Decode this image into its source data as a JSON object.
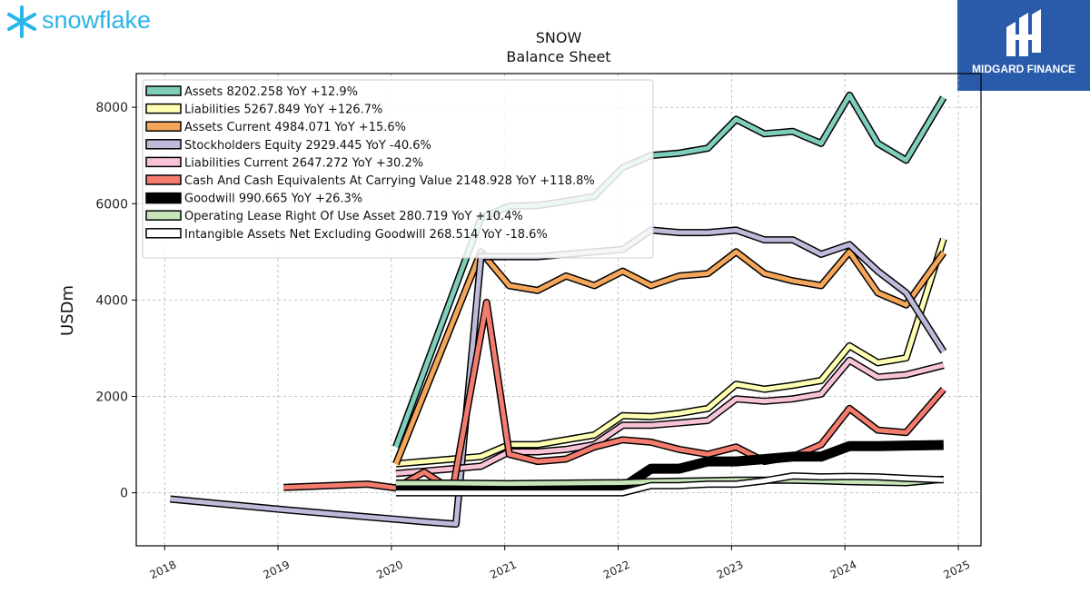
{
  "brand": {
    "left_logo_text": "snowflake",
    "left_logo_color": "#29b5e8",
    "right_logo_text": "MIDGARD FINANCE",
    "right_logo_bg": "#2a5bab"
  },
  "chart_data": {
    "type": "line",
    "title": "SNOW",
    "subtitle": "Balance  Sheet",
    "ylabel": "USDm",
    "ylim": [
      -1100,
      8700
    ],
    "xlim": [
      2017.75,
      2025.2
    ],
    "yticks": [
      0,
      2000,
      4000,
      6000,
      8000
    ],
    "xticks": [
      2018,
      2019,
      2020,
      2021,
      2022,
      2023,
      2024,
      2025
    ],
    "grid": true,
    "legend_position": "top-left",
    "series": [
      {
        "name": "Assets  8202.258 YoY +12.9%",
        "color": "#7fcdbb",
        "width": 5,
        "x": [
          2020.04,
          2020.79,
          2021.04,
          2021.29,
          2021.54,
          2021.79,
          2022.04,
          2022.29,
          2022.54,
          2022.79,
          2023.04,
          2023.29,
          2023.54,
          2023.79,
          2024.04,
          2024.29,
          2024.54,
          2024.87
        ],
        "y": [
          950,
          5700,
          5950,
          5960,
          6050,
          6150,
          6750,
          7000,
          7050,
          7150,
          7750,
          7450,
          7500,
          7250,
          8250,
          7250,
          6900,
          8202
        ]
      },
      {
        "name": "Liabilities  5267.849 YoY +126.7%",
        "color": "#ffffb3",
        "width": 5,
        "x": [
          2020.04,
          2020.29,
          2020.54,
          2020.79,
          2021.04,
          2021.29,
          2021.54,
          2021.79,
          2022.04,
          2022.29,
          2022.54,
          2022.79,
          2023.04,
          2023.29,
          2023.54,
          2023.79,
          2024.04,
          2024.29,
          2024.54,
          2024.87
        ],
        "y": [
          600,
          650,
          700,
          750,
          1000,
          1000,
          1100,
          1200,
          1600,
          1580,
          1650,
          1750,
          2250,
          2150,
          2230,
          2330,
          3050,
          2700,
          2800,
          5268
        ]
      },
      {
        "name": "Assets Current  4984.071 YoY +15.6%",
        "color": "#f4a65a",
        "width": 5,
        "x": [
          2020.04,
          2020.79,
          2021.04,
          2021.29,
          2021.54,
          2021.79,
          2022.04,
          2022.29,
          2022.54,
          2022.79,
          2023.04,
          2023.29,
          2023.54,
          2023.79,
          2024.04,
          2024.29,
          2024.54,
          2024.87
        ],
        "y": [
          600,
          5000,
          4300,
          4200,
          4500,
          4300,
          4600,
          4300,
          4500,
          4550,
          5000,
          4550,
          4400,
          4300,
          5000,
          4150,
          3900,
          4984
        ]
      },
      {
        "name": "Stockholders Equity  2929.445 YoY -40.6%",
        "color": "#bebada",
        "width": 5,
        "x": [
          2018.05,
          2019.05,
          2019.79,
          2020.04,
          2020.29,
          2020.57,
          2020.79,
          2021.04,
          2021.29,
          2021.54,
          2021.79,
          2022.04,
          2022.29,
          2022.54,
          2022.79,
          2023.04,
          2023.29,
          2023.54,
          2023.79,
          2024.04,
          2024.29,
          2024.54,
          2024.87
        ],
        "y": [
          -130,
          -350,
          -500,
          -550,
          -600,
          -650,
          4900,
          4900,
          4900,
          4950,
          5000,
          5050,
          5450,
          5400,
          5400,
          5450,
          5250,
          5250,
          4950,
          5150,
          4600,
          4150,
          2929
        ]
      },
      {
        "name": "Liabilities Current  2647.272 YoY +30.2%",
        "color": "#f8c3d8",
        "width": 5,
        "x": [
          2020.04,
          2020.29,
          2020.54,
          2020.79,
          2021.04,
          2021.29,
          2021.54,
          2021.79,
          2022.04,
          2022.29,
          2022.54,
          2022.79,
          2023.04,
          2023.29,
          2023.54,
          2023.79,
          2024.04,
          2024.29,
          2024.54,
          2024.87
        ],
        "y": [
          400,
          450,
          500,
          550,
          850,
          850,
          900,
          1000,
          1400,
          1400,
          1450,
          1500,
          1950,
          1900,
          1950,
          2050,
          2750,
          2400,
          2450,
          2647
        ]
      },
      {
        "name": "Cash And Cash Equivalents At Carrying Value  2148.928 YoY +118.8%",
        "color": "#f47c6e",
        "width": 5,
        "x": [
          2019.05,
          2019.79,
          2020.04,
          2020.29,
          2020.54,
          2020.84,
          2021.04,
          2021.29,
          2021.54,
          2021.79,
          2022.04,
          2022.29,
          2022.54,
          2022.79,
          2023.04,
          2023.29,
          2023.54,
          2023.79,
          2024.04,
          2024.29,
          2024.54,
          2024.87
        ],
        "y": [
          110,
          180,
          100,
          430,
          50,
          3950,
          800,
          650,
          700,
          950,
          1100,
          1050,
          900,
          800,
          950,
          650,
          750,
          1000,
          1750,
          1300,
          1250,
          2149
        ]
      },
      {
        "name": "Goodwill  990.665 YoY +26.3%",
        "color": "#000000",
        "width": 11,
        "x": [
          2020.04,
          2021.04,
          2022.04,
          2022.29,
          2022.54,
          2022.79,
          2023.04,
          2023.29,
          2023.54,
          2023.79,
          2024.04,
          2024.29,
          2024.54,
          2024.87
        ],
        "y": [
          110,
          110,
          110,
          500,
          500,
          650,
          650,
          700,
          750,
          750,
          970,
          970,
          980,
          991
        ]
      },
      {
        "name": "Operating Lease Right Of Use Asset  280.719 YoY +10.4%",
        "color": "#c7e5b9",
        "width": 5,
        "x": [
          2020.04,
          2020.54,
          2021.04,
          2021.54,
          2022.04,
          2022.29,
          2022.79,
          2023.04,
          2023.54,
          2023.79,
          2024.04,
          2024.54,
          2024.87
        ],
        "y": [
          200,
          200,
          190,
          200,
          210,
          230,
          250,
          260,
          260,
          250,
          230,
          210,
          281
        ]
      },
      {
        "name": "Intangible Assets Net Excluding Goodwill  268.514 YoY -18.6%",
        "color": "#ffffff",
        "width": 5,
        "x": [
          2020.04,
          2020.54,
          2021.04,
          2021.54,
          2022.04,
          2022.29,
          2022.54,
          2022.79,
          2023.04,
          2023.29,
          2023.54,
          2023.79,
          2024.04,
          2024.29,
          2024.54,
          2024.87
        ],
        "y": [
          0,
          0,
          0,
          0,
          0,
          150,
          150,
          180,
          180,
          250,
          350,
          330,
          340,
          330,
          300,
          269
        ]
      }
    ]
  }
}
